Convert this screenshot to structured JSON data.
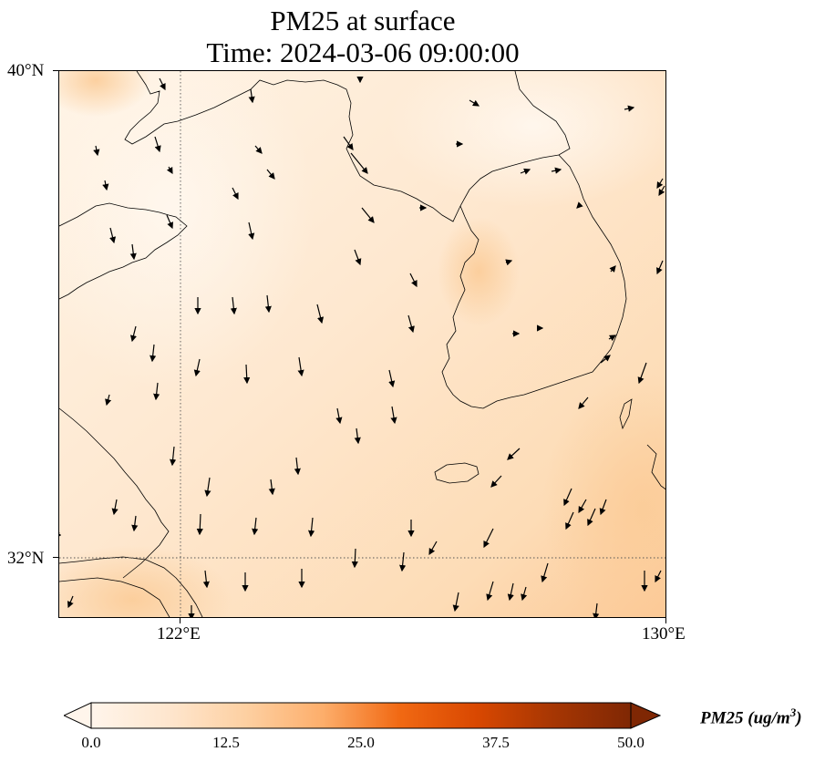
{
  "title": {
    "line1": "PM25 at surface",
    "line2": "Time: 2024-03-06 09:00:00"
  },
  "axes": {
    "lat_labels": [
      "40°N",
      "32°N"
    ],
    "lon_labels": [
      "122°E",
      "130°E"
    ],
    "lat_range": [
      31,
      40
    ],
    "lon_range": [
      120,
      130
    ],
    "gridlines": "dotted at 122°E and 32°N"
  },
  "colorbar": {
    "label": "PM25 (ug/m",
    "label_sup": "3",
    "label_close": ")",
    "ticks": [
      "0.0",
      "12.5",
      "25.0",
      "37.5",
      "50.0"
    ],
    "range": [
      0,
      50
    ],
    "cmap": [
      "#fff5eb",
      "#fee6ce",
      "#fdd0a2",
      "#fdae6b",
      "#f16913",
      "#d94801",
      "#a63603",
      "#7f2704"
    ],
    "extend": "both"
  },
  "field_colors": {
    "background": "#fde7cc",
    "light": "#fff3e3",
    "dark": "#fbd2a6"
  }
}
